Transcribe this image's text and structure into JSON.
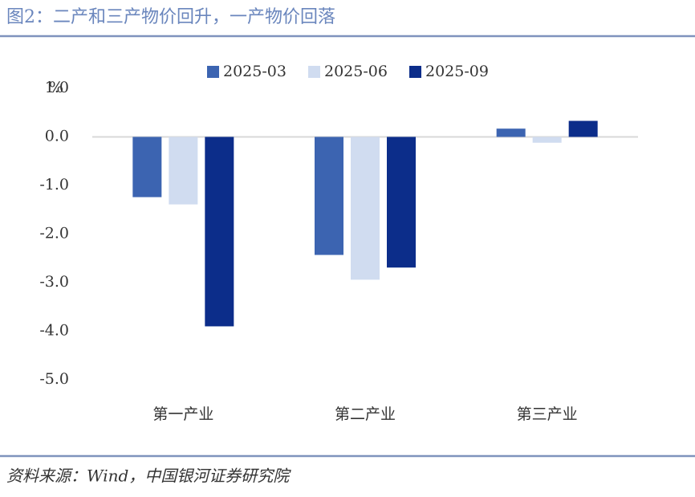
{
  "chart_data": {
    "type": "bar",
    "title": "图2：二产和三产物价回升，一产物价回落",
    "source": "资料来源：Wind，中国银河证券研究院",
    "y_label": "%",
    "categories": [
      "第一产业",
      "第二产业",
      "第三产业"
    ],
    "series": [
      {
        "name": "2025-03",
        "color": "#3c64b1",
        "values": [
          -1.24,
          -2.43,
          0.17
        ]
      },
      {
        "name": "2025-06",
        "color": "#d0dcf0",
        "values": [
          -1.39,
          -2.94,
          -0.12
        ]
      },
      {
        "name": "2025-09",
        "color": "#0c2d8a",
        "values": [
          -3.9,
          -2.69,
          0.33
        ]
      }
    ],
    "ylim": [
      -5,
      1
    ],
    "yticks": [
      {
        "value": 1,
        "label": "1.0"
      },
      {
        "value": 0,
        "label": "0.0"
      },
      {
        "value": -1,
        "label": "-1.0"
      },
      {
        "value": -2,
        "label": "-2.0"
      },
      {
        "value": -3,
        "label": "-3.0"
      },
      {
        "value": -4,
        "label": "-4.0"
      },
      {
        "value": -5,
        "label": "-5.0"
      }
    ],
    "legend": "top"
  }
}
